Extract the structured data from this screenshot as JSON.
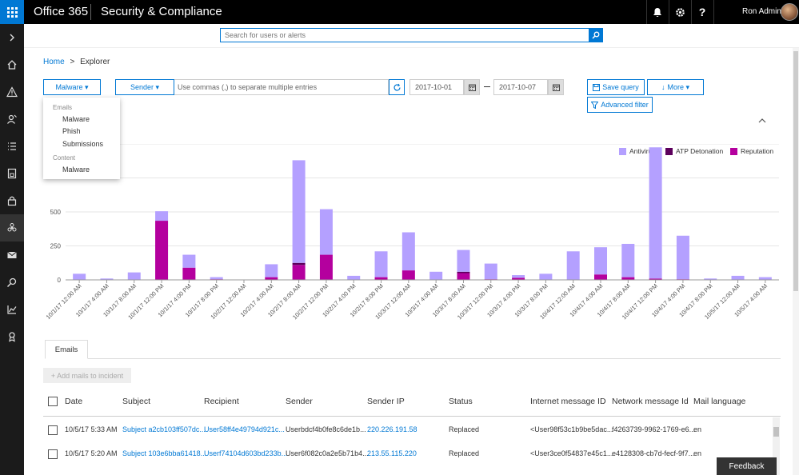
{
  "topbar": {
    "brand": "Office 365",
    "app_title": "Security & Compliance",
    "user_name": "Ron Admin",
    "icons": [
      "bell-icon",
      "gear-icon",
      "help-icon"
    ]
  },
  "search": {
    "placeholder": "Search for users or alerts"
  },
  "breadcrumb": {
    "home": "Home",
    "separator": ">",
    "current": "Explorer"
  },
  "filters": {
    "view_label": "Malware ▾",
    "field_label": "Sender ▾",
    "field_placeholder": "Use commas (,) to separate multiple entries",
    "date_from": "2017-10-01",
    "date_to": "2017-10-07",
    "save_query": "Save query",
    "more": "More ▾",
    "advanced_filter": "Advanced filter"
  },
  "dropdown": {
    "group1": "Emails",
    "group1_items": [
      "Malware",
      "Phish",
      "Submissions"
    ],
    "group2": "Content",
    "group2_items": [
      "Malware"
    ]
  },
  "chart_data": {
    "type": "bar",
    "stacked": true,
    "categories": [
      "10/1/17 12:00 AM",
      "10/1/17 4:00 AM",
      "10/1/17 8:00 AM",
      "10/1/17 12:00 PM",
      "10/1/17 4:00 PM",
      "10/1/17 8:00 PM",
      "10/2/17 12:00 AM",
      "10/2/17 4:00 AM",
      "10/2/17 8:00 AM",
      "10/2/17 12:00 PM",
      "10/2/17 4:00 PM",
      "10/2/17 8:00 PM",
      "10/3/17 12:00 AM",
      "10/3/17 4:00 AM",
      "10/3/17 8:00 AM",
      "10/3/17 12:00 PM",
      "10/3/17 4:00 PM",
      "10/3/17 8:00 PM",
      "10/4/17 12:00 AM",
      "10/4/17 4:00 AM",
      "10/4/17 8:00 AM",
      "10/4/17 12:00 PM",
      "10/4/17 4:00 PM",
      "10/4/17 8:00 PM",
      "10/5/17 12:00 AM",
      "10/5/17 4:00 AM"
    ],
    "series": [
      {
        "name": "Reputation",
        "color": "#b4009e",
        "values": [
          0,
          0,
          0,
          435,
          90,
          5,
          0,
          20,
          110,
          185,
          0,
          20,
          70,
          0,
          50,
          5,
          15,
          0,
          0,
          40,
          20,
          10,
          5,
          0,
          0,
          0
        ]
      },
      {
        "name": "ATP Detonation",
        "color": "#5c005c",
        "values": [
          0,
          0,
          0,
          0,
          0,
          0,
          0,
          0,
          15,
          0,
          0,
          0,
          0,
          0,
          10,
          0,
          0,
          0,
          0,
          0,
          0,
          0,
          0,
          0,
          0,
          0
        ]
      },
      {
        "name": "Antivirus",
        "color": "#b4a0ff",
        "values": [
          45,
          10,
          55,
          70,
          95,
          15,
          0,
          95,
          755,
          335,
          30,
          190,
          280,
          60,
          160,
          115,
          20,
          45,
          210,
          200,
          245,
          965,
          320,
          10,
          30,
          20
        ]
      }
    ],
    "yticks": [
      0,
      250,
      500
    ],
    "ylim": [
      0,
      1000
    ],
    "legend_position": "top-right",
    "grid": true
  },
  "tabs": {
    "emails": "Emails"
  },
  "table": {
    "add_button": "+ Add mails to incident",
    "headers": [
      "Date",
      "Subject",
      "Recipient",
      "Sender",
      "Sender IP",
      "Status",
      "Internet message ID",
      "Network message Id",
      "Mail language"
    ],
    "rows": [
      [
        "10/5/17 5:33 AM",
        "Subject a2cb103ff507dc...",
        "User58ff4e49794d921c...",
        "Userbdcf4b0fe8c6de1b...",
        "220.226.191.58",
        "Replaced",
        "<User98f53c1b9be5dac...",
        "f4263739-9962-1769-e6...",
        "en"
      ],
      [
        "10/5/17 5:20 AM",
        "Subject 103e6bba61418...",
        "Userf74104d603bd233b...",
        "User6f082c0a2e5b71b4...",
        "213.55.115.220",
        "Replaced",
        "<User3ce0f54837e45c1...",
        "e4128308-cb7d-fecf-9f7...",
        "en"
      ]
    ]
  },
  "feedback": "Feedback"
}
